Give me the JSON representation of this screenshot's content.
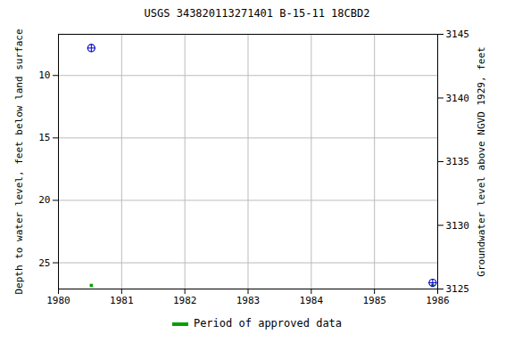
{
  "chart_data": {
    "type": "scatter",
    "title": "USGS 343820113271401 B-15-11 18CBD2",
    "x_label": null,
    "y_label": "Depth to water level, feet below land surface",
    "y2_label": "Groundwater level above NGVD 1929, feet",
    "x": [
      1980.52,
      1985.92
    ],
    "values": [
      7.8,
      26.6
    ],
    "color": "#0000cc",
    "marker": "circle",
    "approved": {
      "name": "Period of approved data",
      "color": "#00a000",
      "x": [
        1980.52,
        1985.92
      ]
    },
    "xlim": [
      1980,
      1986
    ],
    "xticks": [
      1980,
      1981,
      1982,
      1983,
      1984,
      1985,
      1986
    ],
    "ylim": [
      6.7,
      27.1
    ],
    "yticks": [
      10,
      15,
      20,
      25
    ],
    "y2lim": [
      3125,
      3145
    ],
    "y2ticks": [
      3125,
      3130,
      3135,
      3140,
      3145
    ],
    "grid": true,
    "legend": "bottom"
  }
}
